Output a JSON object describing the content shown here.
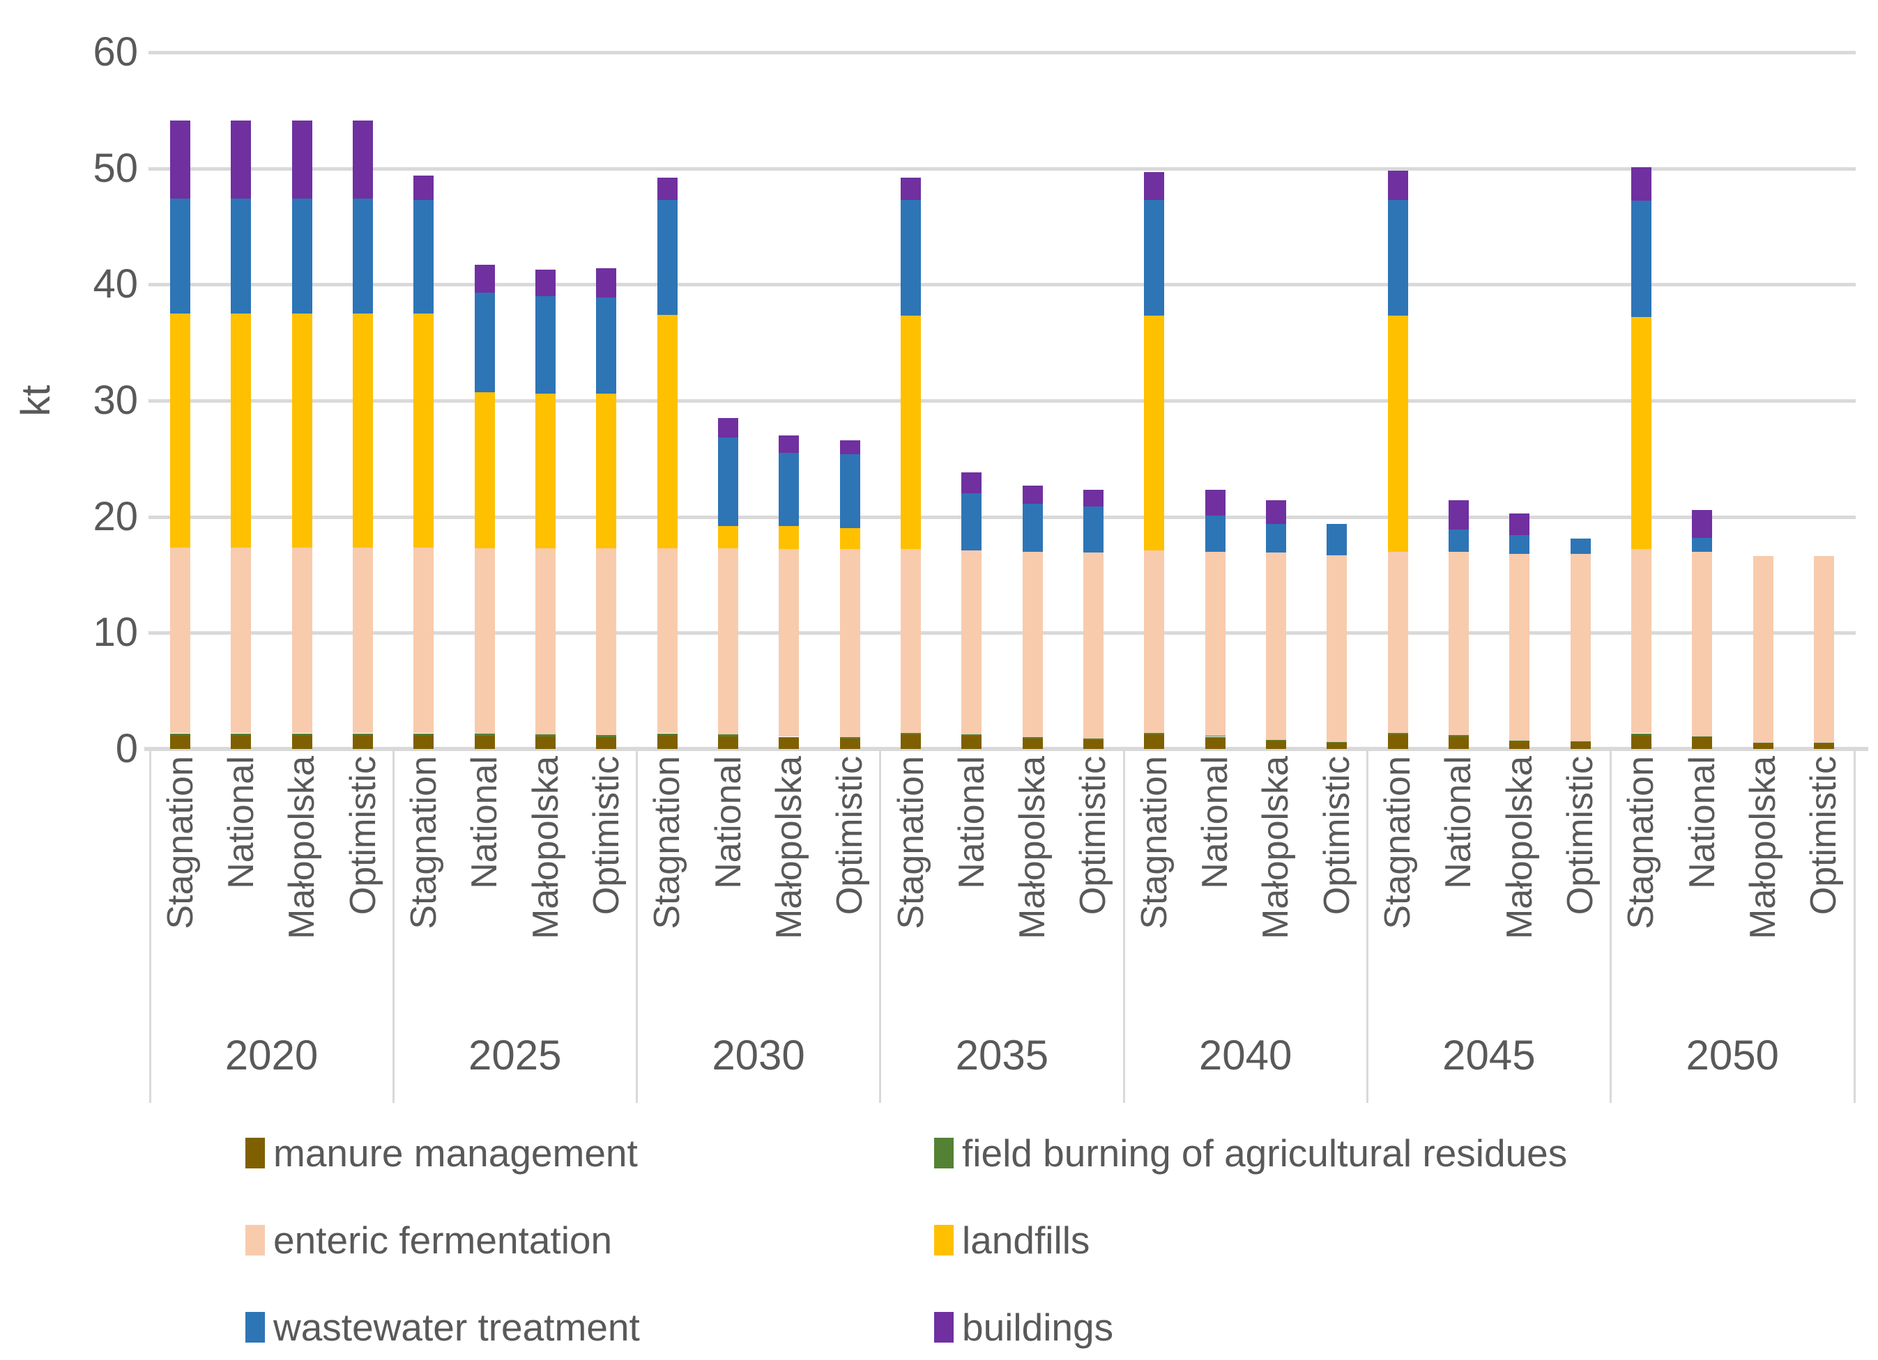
{
  "colors": {
    "gridline": "#d9d9d9",
    "axis_text": "#595959",
    "background": "#ffffff"
  },
  "chart_data": {
    "type": "bar",
    "stacked": true,
    "title": "",
    "xlabel": "",
    "ylabel": "kt",
    "ylim": [
      0,
      60
    ],
    "yticks": [
      0,
      10,
      20,
      30,
      40,
      50,
      60
    ],
    "grid": true,
    "legend_position": "bottom",
    "groups": [
      "2020",
      "2025",
      "2030",
      "2035",
      "2040",
      "2045",
      "2050"
    ],
    "scenarios": [
      "Stagnation",
      "National",
      "Małopolska",
      "Optimistic"
    ],
    "series": [
      {
        "name": "manure management",
        "color": "#7F6000",
        "values": [
          1.2,
          1.2,
          1.2,
          1.2,
          1.2,
          1.15,
          1.1,
          1.05,
          1.2,
          1.1,
          0.95,
          0.9,
          1.25,
          1.15,
          0.9,
          0.8,
          1.25,
          1.05,
          0.7,
          0.55,
          1.25,
          1.1,
          0.65,
          0.6,
          1.2,
          1.0,
          0.5,
          0.5
        ]
      },
      {
        "name": "field burning of agricultural residues",
        "color": "#548235",
        "values": [
          0.15,
          0.15,
          0.15,
          0.15,
          0.15,
          0.15,
          0.15,
          0.15,
          0.15,
          0.15,
          0.1,
          0.1,
          0.15,
          0.1,
          0.1,
          0.1,
          0.15,
          0.1,
          0.1,
          0.05,
          0.15,
          0.1,
          0.05,
          0.05,
          0.15,
          0.1,
          0.05,
          0.05
        ]
      },
      {
        "name": "enteric fermentation",
        "color": "#F8CBAD",
        "values": [
          16.0,
          16.0,
          16.0,
          16.0,
          16.0,
          16.0,
          16.05,
          16.1,
          15.95,
          16.05,
          16.15,
          16.2,
          15.8,
          15.85,
          16.0,
          16.0,
          15.7,
          15.85,
          16.1,
          16.1,
          15.6,
          15.8,
          16.1,
          16.15,
          15.85,
          15.9,
          16.1,
          16.1
        ]
      },
      {
        "name": "landfills",
        "color": "#FFC000",
        "values": [
          20.15,
          20.15,
          20.15,
          20.15,
          20.15,
          13.4,
          13.3,
          13.3,
          20.1,
          1.9,
          2.0,
          1.8,
          20.1,
          0,
          0,
          0,
          20.2,
          0,
          0,
          0,
          20.3,
          0,
          0,
          0,
          20.0,
          0,
          0,
          0
        ]
      },
      {
        "name": "wastewater treatment",
        "color": "#2E75B6",
        "values": [
          9.9,
          9.9,
          9.9,
          9.9,
          9.8,
          8.6,
          8.4,
          8.3,
          9.9,
          7.6,
          6.3,
          6.4,
          10.0,
          4.9,
          4.1,
          4.0,
          10.0,
          3.1,
          2.5,
          2.7,
          10.0,
          1.9,
          1.6,
          1.3,
          10.0,
          1.2,
          0,
          0
        ]
      },
      {
        "name": "buildings",
        "color": "#7030A0",
        "values": [
          6.7,
          6.7,
          6.7,
          6.7,
          2.1,
          2.4,
          2.3,
          2.5,
          1.9,
          1.7,
          1.5,
          1.2,
          1.9,
          1.8,
          1.6,
          1.4,
          2.4,
          2.2,
          2.0,
          0,
          2.5,
          2.5,
          1.9,
          0,
          2.9,
          2.4,
          0,
          0
        ]
      }
    ]
  }
}
